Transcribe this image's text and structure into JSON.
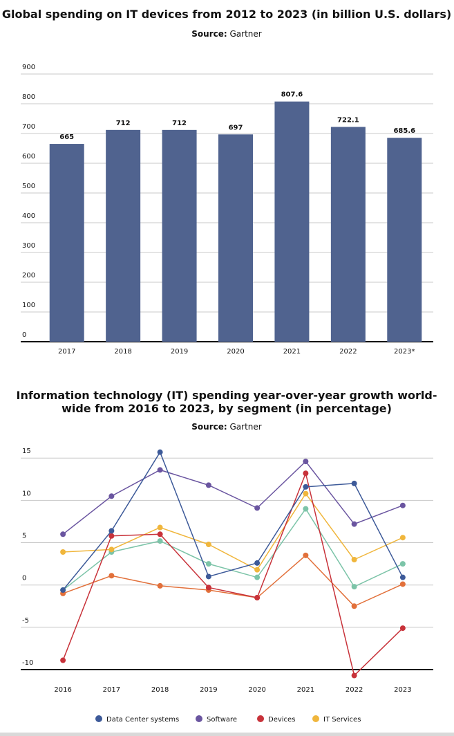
{
  "chart_data": [
    {
      "type": "bar",
      "title": [
        "Global spending on IT devices from 2012 to 2023 (in billion U.S. dollars)"
      ],
      "source_label": "Source:",
      "source": "Gartner",
      "categories": [
        "2017",
        "2018",
        "2019",
        "2020",
        "2021",
        "2022",
        "2023*"
      ],
      "values": [
        665,
        712,
        712,
        697,
        807.6,
        722.1,
        685.6
      ],
      "color": "#50638f",
      "ylim": [
        0,
        900
      ],
      "yticks": [
        0,
        100,
        200,
        300,
        400,
        500,
        600,
        700,
        800,
        900
      ],
      "grid": true
    },
    {
      "type": "line",
      "title": [
        "Information technology (IT) spending year-over-year growth world-",
        "wide from 2016 to 2023, by segment (in percentage)"
      ],
      "source_label": "Source:",
      "source": "Gartner",
      "categories": [
        "2016",
        "2017",
        "2018",
        "2019",
        "2020",
        "2021",
        "2022",
        "2023"
      ],
      "series": [
        {
          "color": "#7cc4a8",
          "values": [
            -0.6,
            3.9,
            5.2,
            2.5,
            0.9,
            9.0,
            -0.2,
            2.5
          ]
        },
        {
          "color": "#e2703a",
          "values": [
            -1.0,
            1.1,
            -0.1,
            -0.6,
            -1.5,
            3.5,
            -2.5,
            0.1
          ]
        },
        {
          "name": "IT Services",
          "color": "#f0b63c",
          "values": [
            3.9,
            4.2,
            6.8,
            4.8,
            1.8,
            10.8,
            3.0,
            5.6
          ]
        },
        {
          "name": "Devices",
          "color": "#c8323a",
          "values": [
            -8.9,
            5.8,
            6.0,
            -0.3,
            -1.5,
            13.2,
            -10.7,
            -5.1
          ]
        },
        {
          "name": "Software",
          "color": "#6a55a0",
          "values": [
            6.0,
            10.5,
            13.6,
            11.8,
            9.1,
            14.6,
            7.2,
            9.4
          ]
        },
        {
          "name": "Data Center systems",
          "color": "#3d5a99",
          "values": [
            -0.6,
            6.4,
            15.7,
            1.0,
            2.6,
            11.6,
            12.0,
            0.9
          ]
        }
      ],
      "ylim": [
        -10,
        16
      ],
      "yticks": [
        -10,
        -5,
        0,
        5,
        10,
        15
      ],
      "grid": true
    }
  ]
}
